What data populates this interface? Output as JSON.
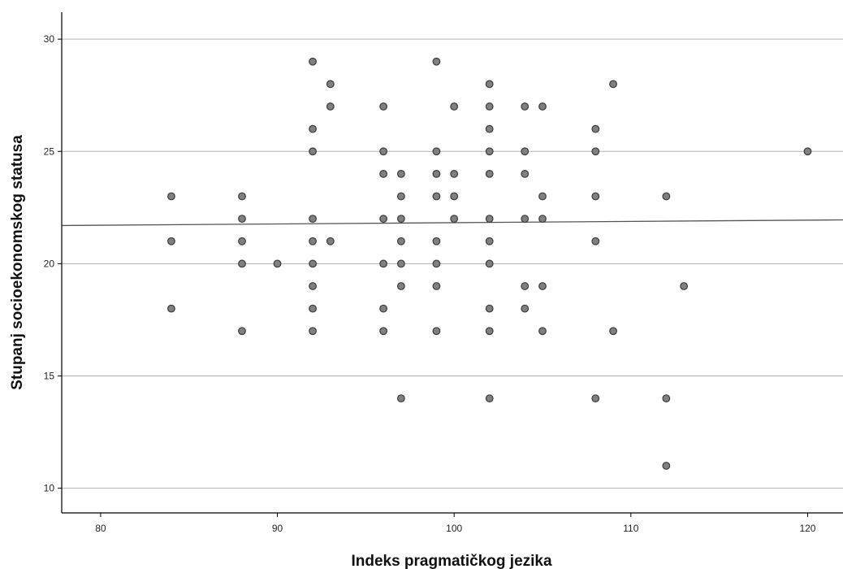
{
  "chart_data": {
    "type": "scatter",
    "title": "",
    "xlabel": "Indeks pragmatičkog jezika",
    "ylabel": "Stupanj socioekonomskog statusa",
    "xlim": [
      77.8,
      122
    ],
    "ylim": [
      8.9,
      31.2
    ],
    "xticks": [
      80,
      90,
      100,
      110,
      120
    ],
    "yticks": [
      10,
      15,
      20,
      25,
      30
    ],
    "xtick_labels": [
      "80",
      "90",
      "100",
      "110",
      "120"
    ],
    "ytick_labels": [
      "10",
      "15",
      "20",
      "25",
      "30"
    ],
    "grid": "horizontal",
    "legend": "none",
    "colors": {
      "point_fill": "#808080",
      "point_stroke": "#3a3a3a",
      "fit_line": "#555555",
      "grid": "#b3b3b3",
      "axis": "#000000"
    },
    "fit_line": {
      "x": [
        77.8,
        122
      ],
      "y": [
        21.7,
        21.95
      ]
    },
    "points": [
      [
        84,
        23
      ],
      [
        84,
        21
      ],
      [
        84,
        18
      ],
      [
        88,
        23
      ],
      [
        88,
        22
      ],
      [
        88,
        21
      ],
      [
        88,
        20
      ],
      [
        88,
        17
      ],
      [
        90,
        20
      ],
      [
        92,
        29
      ],
      [
        92,
        26
      ],
      [
        92,
        25
      ],
      [
        92,
        22
      ],
      [
        92,
        21
      ],
      [
        92,
        20
      ],
      [
        92,
        19
      ],
      [
        92,
        18
      ],
      [
        92,
        17
      ],
      [
        93,
        28
      ],
      [
        93,
        27
      ],
      [
        93,
        21
      ],
      [
        96,
        27
      ],
      [
        96,
        25
      ],
      [
        96,
        24
      ],
      [
        96,
        22
      ],
      [
        96,
        20
      ],
      [
        96,
        18
      ],
      [
        96,
        17
      ],
      [
        97,
        24
      ],
      [
        97,
        23
      ],
      [
        97,
        22
      ],
      [
        97,
        21
      ],
      [
        97,
        20
      ],
      [
        97,
        19
      ],
      [
        97,
        14
      ],
      [
        99,
        29
      ],
      [
        99,
        25
      ],
      [
        99,
        24
      ],
      [
        99,
        23
      ],
      [
        99,
        21
      ],
      [
        99,
        20
      ],
      [
        99,
        19
      ],
      [
        99,
        17
      ],
      [
        100,
        27
      ],
      [
        100,
        24
      ],
      [
        100,
        23
      ],
      [
        100,
        22
      ],
      [
        102,
        28
      ],
      [
        102,
        27
      ],
      [
        102,
        26
      ],
      [
        102,
        25
      ],
      [
        102,
        24
      ],
      [
        102,
        22
      ],
      [
        102,
        21
      ],
      [
        102,
        20
      ],
      [
        102,
        18
      ],
      [
        102,
        17
      ],
      [
        102,
        14
      ],
      [
        104,
        27
      ],
      [
        104,
        25
      ],
      [
        104,
        24
      ],
      [
        104,
        22
      ],
      [
        104,
        19
      ],
      [
        104,
        18
      ],
      [
        105,
        27
      ],
      [
        105,
        23
      ],
      [
        105,
        22
      ],
      [
        105,
        19
      ],
      [
        105,
        17
      ],
      [
        108,
        26
      ],
      [
        108,
        25
      ],
      [
        108,
        23
      ],
      [
        108,
        21
      ],
      [
        108,
        14
      ],
      [
        109,
        28
      ],
      [
        109,
        17
      ],
      [
        112,
        23
      ],
      [
        112,
        14
      ],
      [
        112,
        11
      ],
      [
        113,
        19
      ],
      [
        120,
        25
      ]
    ]
  }
}
